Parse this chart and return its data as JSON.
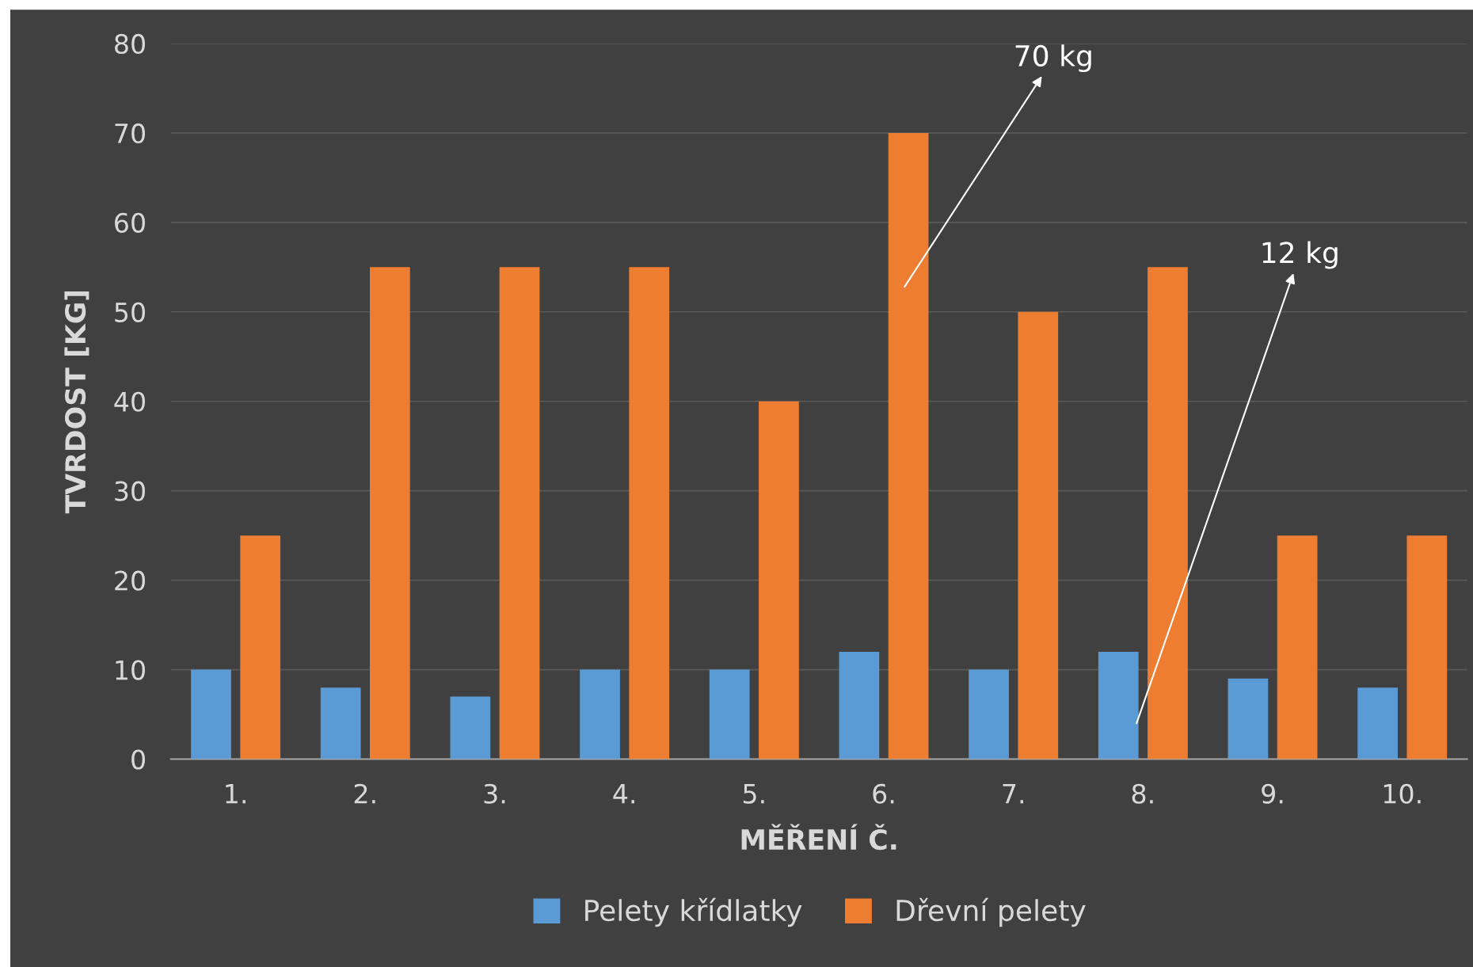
{
  "chart_data": {
    "type": "bar",
    "xlabel": "MĚŘENÍ Č.",
    "ylabel": "TVRDOST [KG]",
    "categories": [
      "1.",
      "2.",
      "3.",
      "4.",
      "5.",
      "6.",
      "7.",
      "8.",
      "9.",
      "10."
    ],
    "series": [
      {
        "name": "Pelety křídlatky",
        "color": "#5b9bd5",
        "values": [
          10,
          8,
          7,
          10,
          10,
          12,
          10,
          12,
          9,
          8
        ]
      },
      {
        "name": "Dřevní pelety",
        "color": "#ed7d31",
        "values": [
          25,
          55,
          55,
          55,
          40,
          70,
          50,
          55,
          25,
          25
        ]
      }
    ],
    "ylim": [
      0,
      80
    ],
    "yticks": [
      0,
      10,
      20,
      30,
      40,
      50,
      60,
      70,
      80
    ],
    "grid": "y",
    "legend": "bottom",
    "annotations": [
      "70 kg",
      "12 kg"
    ]
  }
}
